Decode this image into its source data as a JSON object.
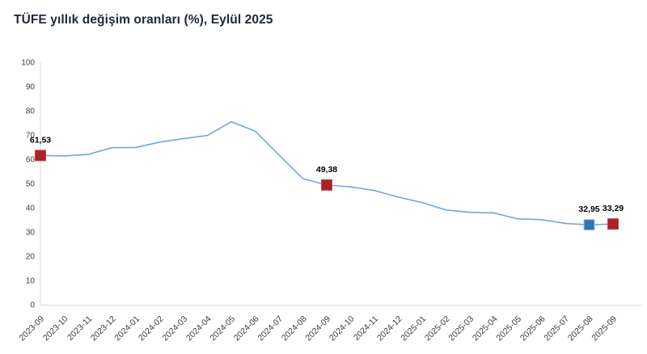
{
  "header": {
    "title": "TÜFE yıllık değişim oranları (%), Eylül 2025"
  },
  "chart_data": {
    "type": "line",
    "title": "TÜFE yıllık değişim oranları (%), Eylül 2025",
    "xlabel": "",
    "ylabel": "",
    "ylim": [
      0,
      100
    ],
    "ytick_step": 10,
    "grid": false,
    "legend": "none",
    "line_color": "#74a5d6",
    "axis_color": "#d9d9d9",
    "tick_label_color": "#3d3d3d",
    "categories": [
      "2023-09",
      "2023-10",
      "2023-11",
      "2023-12",
      "2024-01",
      "2024-02",
      "2024-03",
      "2024-04",
      "2024-05",
      "2024-06",
      "2024-07",
      "2024-08",
      "2024-09",
      "2024-10",
      "2024-11",
      "2024-12",
      "2025-01",
      "2025-02",
      "2025-03",
      "2025-04",
      "2025-05",
      "2025-06",
      "2025-07",
      "2025-08",
      "2025-09"
    ],
    "values": [
      61.53,
      61.36,
      61.98,
      64.77,
      64.86,
      67.07,
      68.5,
      69.8,
      75.45,
      71.6,
      61.78,
      51.97,
      49.38,
      48.58,
      47.09,
      44.38,
      42.12,
      39.05,
      38.1,
      37.86,
      35.41,
      35.05,
      33.52,
      32.95,
      33.29
    ],
    "annotated_points": [
      {
        "category": "2023-09",
        "index": 0,
        "value": 61.53,
        "label": "61,53",
        "marker_color": "#aa2328",
        "marker_border": "#b8474c"
      },
      {
        "category": "2024-09",
        "index": 12,
        "value": 49.38,
        "label": "49,38",
        "marker_color": "#aa2328",
        "marker_border": "#b8474c"
      },
      {
        "category": "2025-08",
        "index": 23,
        "value": 32.95,
        "label": "32,95",
        "marker_color": "#2f75b5",
        "marker_border": "#a6c8e4"
      },
      {
        "category": "2025-09",
        "index": 24,
        "value": 33.29,
        "label": "33,29",
        "marker_color": "#aa2328",
        "marker_border": "#b8474c"
      }
    ]
  }
}
